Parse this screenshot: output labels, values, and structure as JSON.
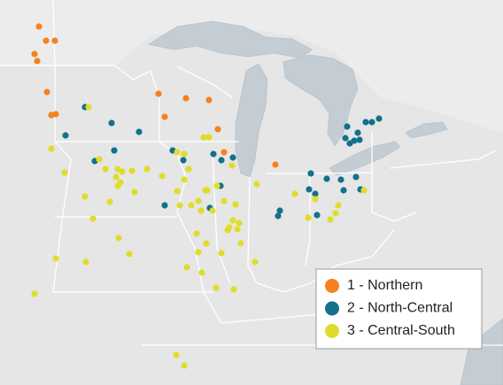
{
  "legend": {
    "items": [
      {
        "label": "1 - Northern",
        "color": "#f5821f"
      },
      {
        "label": "2 - North-Central",
        "color": "#13718a"
      },
      {
        "label": "3 - Central-South",
        "color": "#e0dc2a"
      }
    ]
  }
}
